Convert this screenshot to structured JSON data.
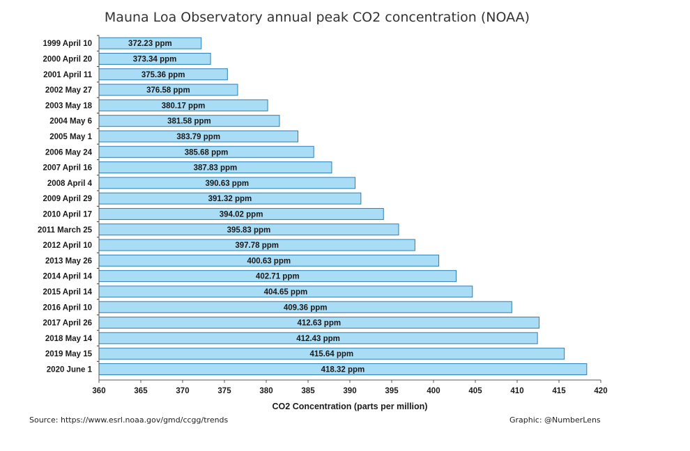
{
  "chart_data": {
    "type": "bar",
    "orientation": "horizontal",
    "title": "Mauna Loa Observatory annual peak CO2 concentration (NOAA)",
    "xlabel": "CO2 Concentration (parts per million)",
    "ylabel": "",
    "xlim": [
      360,
      420
    ],
    "xticks": [
      360,
      365,
      370,
      375,
      380,
      385,
      390,
      395,
      400,
      405,
      410,
      415,
      420
    ],
    "categories": [
      "1999 April 10",
      "2000 April 20",
      "2001 April 11",
      "2002 May 27",
      "2003 May 18",
      "2004 May 6",
      "2005 May 1",
      "2006 May 24",
      "2007 April 16",
      "2008 April 4",
      "2009 April 29",
      "2010 April 17",
      "2011 March 25",
      "2012 April 10",
      "2013 May 26",
      "2014 April 14",
      "2015 April 14",
      "2016 April 10",
      "2017 April 26",
      "2018 May 14",
      "2019 May 15",
      "2020 June 1"
    ],
    "values": [
      372.23,
      373.34,
      375.36,
      376.58,
      380.17,
      381.58,
      383.79,
      385.68,
      387.83,
      390.63,
      391.32,
      394.02,
      395.83,
      397.78,
      400.63,
      402.71,
      404.65,
      409.36,
      412.63,
      412.43,
      415.64,
      418.32
    ],
    "data_labels": [
      "372.23 ppm",
      "373.34 ppm",
      "375.36 ppm",
      "376.58 ppm",
      "380.17 ppm",
      "381.58 ppm",
      "383.79 ppm",
      "385.68 ppm",
      "387.83 ppm",
      "390.63 ppm",
      "391.32 ppm",
      "394.02 ppm",
      "395.83 ppm",
      "397.78 ppm",
      "400.63 ppm",
      "402.71 ppm",
      "404.65 ppm",
      "409.36 ppm",
      "412.63 ppm",
      "412.43 ppm",
      "415.64 ppm",
      "418.32 ppm"
    ],
    "bar_color": "#a9dcf5",
    "bar_edge_color": "#2b7fb6",
    "grid": false,
    "legend": "none"
  },
  "footer": {
    "source": "Source: https://www.esrl.noaa.gov/gmd/ccgg/trends",
    "credit": "Graphic: @NumberLens"
  }
}
